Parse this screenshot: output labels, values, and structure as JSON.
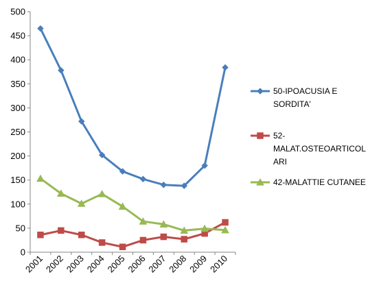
{
  "chart_data": {
    "type": "line",
    "title": "",
    "xlabel": "",
    "ylabel": "",
    "ylim": [
      0,
      500
    ],
    "yticks": [
      0,
      50,
      100,
      150,
      200,
      250,
      300,
      350,
      400,
      450,
      500
    ],
    "grid": false,
    "legend_position": "right",
    "x": [
      "2001",
      "2002",
      "2003",
      "2004",
      "2005",
      "2006",
      "2007",
      "2008",
      "2009",
      "2010"
    ],
    "series": [
      {
        "name": "50-IPOACUSIA E SORDITA'",
        "legend_lines": [
          "50-IPOACUSIA E",
          "SORDITA'"
        ],
        "color": "#4a7ebb",
        "marker": "diamond",
        "values": [
          465,
          378,
          272,
          202,
          168,
          152,
          140,
          138,
          180,
          384
        ]
      },
      {
        "name": "52-MALAT.OSTEOARTICOLARI",
        "legend_lines": [
          "52-",
          "MALAT.OSTEOARTICOL",
          "ARI"
        ],
        "color": "#be4b48",
        "marker": "square",
        "values": [
          36,
          45,
          36,
          20,
          11,
          25,
          32,
          27,
          39,
          62
        ]
      },
      {
        "name": "42-MALATTIE CUTANEE",
        "legend_lines": [
          "42-MALATTIE CUTANEE"
        ],
        "color": "#98b954",
        "marker": "triangle",
        "values": [
          153,
          122,
          101,
          121,
          95,
          64,
          58,
          45,
          49,
          46
        ]
      }
    ]
  }
}
